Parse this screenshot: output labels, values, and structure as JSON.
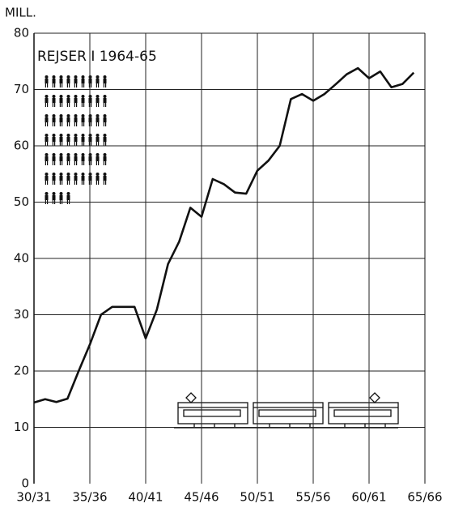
{
  "chart_data": {
    "type": "line",
    "y_label": "MILL.",
    "annotation": "REJSER I 1964-65",
    "categories": [
      "30/31",
      null,
      null,
      null,
      null,
      "35/36",
      null,
      null,
      null,
      null,
      "40/41",
      null,
      null,
      null,
      null,
      "45/46",
      null,
      null,
      null,
      null,
      "50/51",
      null,
      null,
      null,
      null,
      "55/56",
      null,
      null,
      null,
      null,
      "60/61",
      null,
      null,
      null,
      null,
      "65/66"
    ],
    "values": [
      14.4,
      15,
      14.5,
      15.1,
      20,
      24.7,
      30,
      31.4,
      31.4,
      31.4,
      25.8,
      30.9,
      39,
      43,
      49,
      47.4,
      54.1,
      53.2,
      51.7,
      51.5,
      55.6,
      57.4,
      60,
      68.3,
      69.2,
      68,
      69.2,
      70.9,
      72.7,
      73.8,
      72,
      73.2,
      70.4,
      71,
      73,
      null
    ],
    "color": "#111111",
    "ylim": [
      0,
      80
    ],
    "yticks": [
      0,
      10,
      20,
      30,
      40,
      50,
      60,
      70,
      80
    ],
    "grid": true
  }
}
